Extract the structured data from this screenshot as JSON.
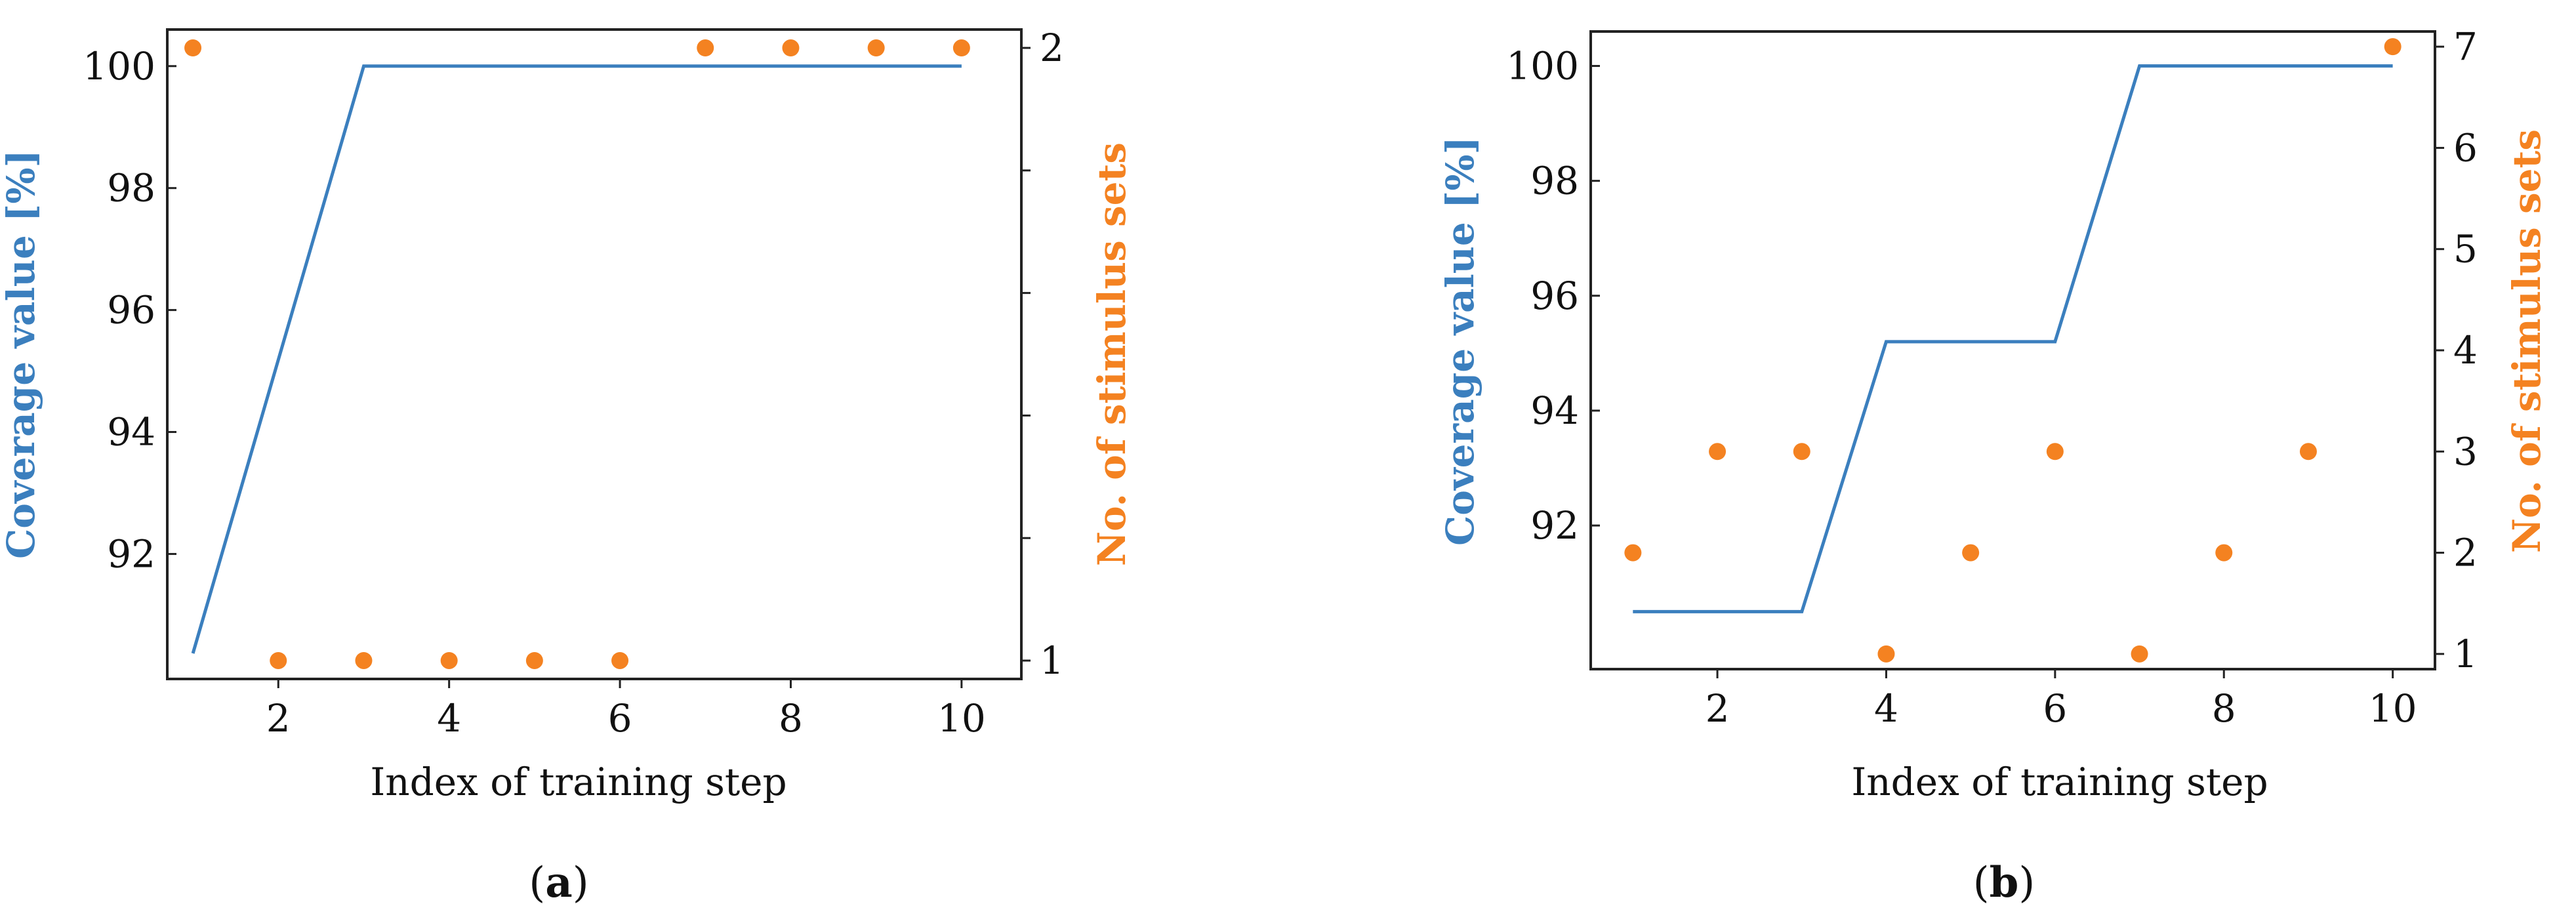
{
  "colors": {
    "coverage": "#3b7fbe",
    "stimulus": "#f48221",
    "axis": "#222222"
  },
  "panels": [
    {
      "open": "(",
      "letter": "a",
      "close": ")"
    },
    {
      "open": "(",
      "letter": "b",
      "close": ")"
    }
  ],
  "chart_data": [
    {
      "type": "line",
      "xlabel": "Index of training step",
      "ylabel": "Coverage value [%]",
      "y2label": "No. of stimulus sets",
      "x_ticks": [
        2,
        4,
        6,
        8,
        10
      ],
      "y_ticks": [
        92,
        94,
        96,
        98,
        100
      ],
      "y2_ticks": [
        1,
        2
      ],
      "xlim": [
        0.7,
        10.7
      ],
      "ylim": [
        89.95,
        100.6
      ],
      "y2lim": [
        0.97,
        2.03
      ],
      "grid": false,
      "series": [
        {
          "axis": "left",
          "style": "line",
          "x": [
            1,
            3,
            4,
            5,
            6,
            7,
            8,
            9,
            10
          ],
          "values": [
            90.37,
            100,
            100,
            100,
            100,
            100,
            100,
            100,
            100
          ]
        },
        {
          "axis": "right",
          "style": "scatter",
          "x": [
            1,
            2,
            3,
            4,
            5,
            6,
            7,
            8,
            9,
            10
          ],
          "values": [
            2,
            1,
            1,
            1,
            1,
            1,
            2,
            2,
            2,
            2
          ]
        }
      ]
    },
    {
      "type": "line",
      "xlabel": "Index of training step",
      "ylabel": "Coverage value [%]",
      "y2label": "No. of stimulus sets",
      "x_ticks": [
        2,
        4,
        6,
        8,
        10
      ],
      "y_ticks": [
        92,
        94,
        96,
        98,
        100
      ],
      "y2_ticks": [
        1,
        2,
        3,
        4,
        5,
        6,
        7
      ],
      "xlim": [
        0.5,
        10.5
      ],
      "ylim": [
        89.5,
        100.6
      ],
      "y2lim": [
        0.85,
        7.15
      ],
      "grid": false,
      "series": [
        {
          "axis": "left",
          "style": "line",
          "x": [
            1,
            2,
            3,
            4,
            5,
            6,
            7,
            8,
            9,
            10
          ],
          "values": [
            90.5,
            90.5,
            90.5,
            95.2,
            95.2,
            95.2,
            100,
            100,
            100,
            100
          ]
        },
        {
          "axis": "right",
          "style": "scatter",
          "x": [
            1,
            2,
            3,
            4,
            5,
            6,
            7,
            8,
            9,
            10
          ],
          "values": [
            2,
            3,
            3,
            1,
            2,
            3,
            1,
            2,
            3,
            7
          ]
        }
      ]
    }
  ]
}
